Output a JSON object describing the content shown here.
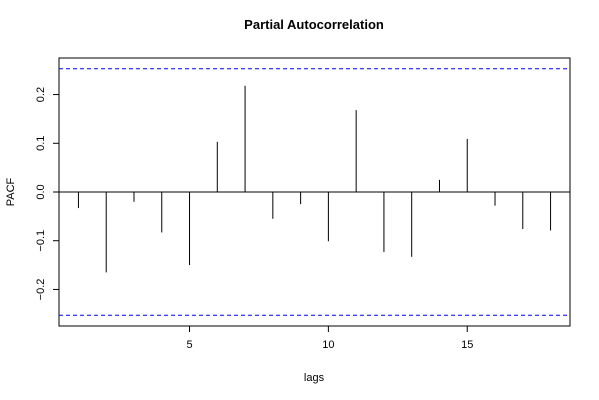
{
  "chart_data": {
    "type": "bar",
    "title": "Partial Autocorrelation",
    "xlabel": "lags",
    "ylabel": "PACF",
    "lags": [
      1,
      2,
      3,
      4,
      5,
      6,
      7,
      8,
      9,
      10,
      11,
      12,
      13,
      14,
      15,
      16,
      17,
      18
    ],
    "values": [
      -0.033,
      -0.165,
      -0.02,
      -0.083,
      -0.15,
      0.103,
      0.218,
      -0.055,
      -0.025,
      -0.101,
      0.168,
      -0.123,
      -0.133,
      0.025,
      0.109,
      -0.028,
      -0.076,
      -0.079
    ],
    "confidence_bound": 0.253,
    "xlim": [
      0.3,
      18.7
    ],
    "ylim": [
      -0.275,
      0.275
    ],
    "x_ticks": [
      5,
      10,
      15
    ],
    "y_ticks": [
      -0.2,
      -0.1,
      0.0,
      0.1,
      0.2
    ],
    "x_tick_labels": [
      "5",
      "10",
      "15"
    ],
    "y_tick_labels": [
      "−0.2",
      "−0.1",
      "0.0",
      "0.1",
      "0.2"
    ],
    "colors": {
      "bars": "#000000",
      "confidence_line": "#0000ff",
      "zero_line": "#000000"
    }
  }
}
